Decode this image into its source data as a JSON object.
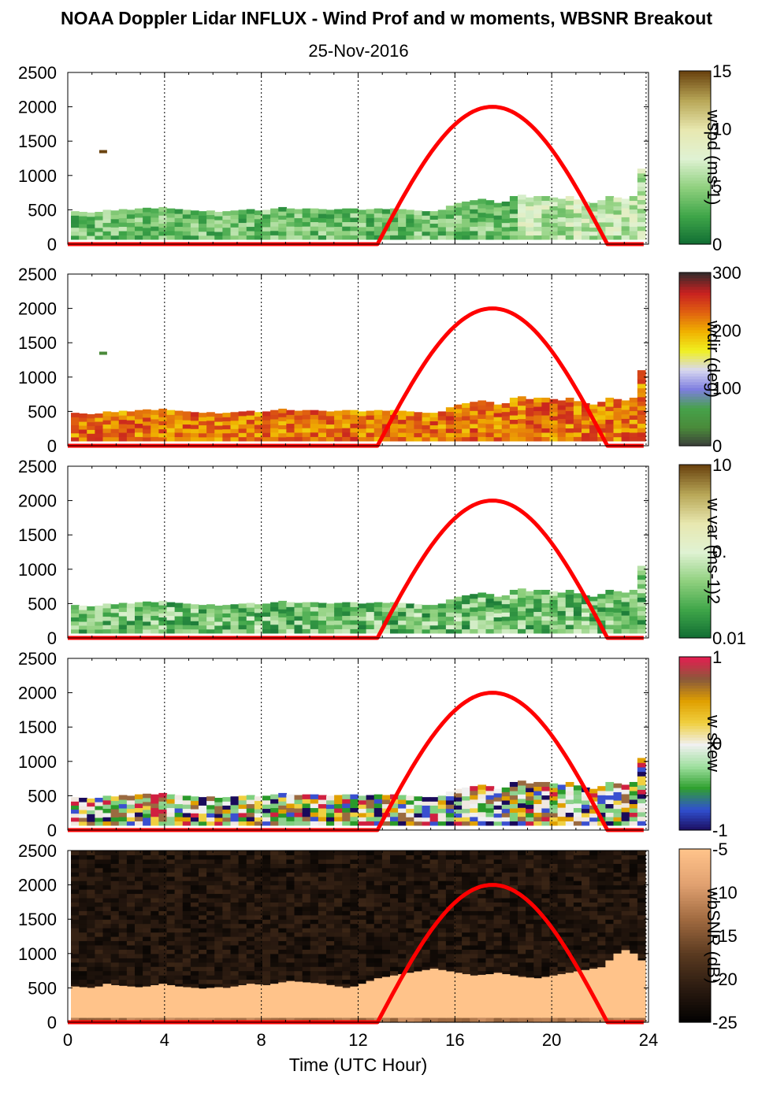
{
  "figure": {
    "title": "NOAA Doppler Lidar INFLUX - Wind Prof and w moments, WBSNR Breakout",
    "date": "25-Nov-2016"
  },
  "chart_data": [
    {
      "type": "heatmap",
      "panel": "wind speed",
      "ylim": [
        0,
        2500
      ],
      "xlim": [
        0,
        24
      ],
      "yticks": [
        "0",
        "500",
        "1000",
        "1500",
        "2000",
        "2500"
      ],
      "colorbar": {
        "label": "wspd (ms-1)",
        "ticks": [
          "15",
          "10",
          "5",
          "0"
        ],
        "range": [
          0,
          15
        ]
      },
      "data_top_m": [
        480,
        470,
        460,
        470,
        500,
        490,
        510,
        500,
        520,
        530,
        520,
        540,
        520,
        510,
        500,
        490,
        480,
        490,
        470,
        480,
        490,
        500,
        510,
        490,
        500,
        520,
        540,
        520,
        510,
        520,
        520,
        510,
        500,
        510,
        520,
        520,
        500,
        510,
        520,
        510,
        520,
        510,
        500,
        490,
        480,
        480,
        500,
        560,
        600,
        620,
        640,
        660,
        640,
        600,
        620,
        700,
        720,
        680,
        700,
        700,
        680,
        660,
        700,
        650,
        620,
        600,
        640,
        700,
        680,
        660,
        700,
        1100
      ],
      "sun_elevation_curve": {
        "rise_hour": 12.8,
        "set_hour": 22.3,
        "peak_hour": 17.5,
        "peak_value": 2000
      }
    },
    {
      "type": "heatmap",
      "panel": "wind direction",
      "ylim": [
        0,
        2500
      ],
      "xlim": [
        0,
        24
      ],
      "yticks": [
        "0",
        "500",
        "1000",
        "1500",
        "2000",
        "2500"
      ],
      "colorbar": {
        "label": "wdir (deg)",
        "ticks": [
          "300",
          "200",
          "100",
          "0"
        ],
        "range": [
          0,
          360
        ]
      },
      "data_top_m": [
        480,
        470,
        460,
        470,
        500,
        490,
        510,
        500,
        520,
        530,
        520,
        540,
        520,
        510,
        500,
        490,
        480,
        490,
        470,
        480,
        490,
        500,
        510,
        490,
        500,
        520,
        540,
        520,
        510,
        520,
        520,
        510,
        500,
        510,
        520,
        520,
        500,
        510,
        520,
        510,
        520,
        510,
        500,
        490,
        480,
        480,
        500,
        560,
        600,
        620,
        640,
        660,
        640,
        600,
        620,
        700,
        720,
        680,
        700,
        700,
        680,
        660,
        700,
        650,
        620,
        600,
        640,
        700,
        680,
        660,
        700,
        1100
      ],
      "sun_elevation_curve": {
        "rise_hour": 12.8,
        "set_hour": 22.3,
        "peak_hour": 17.5,
        "peak_value": 2000
      }
    },
    {
      "type": "heatmap",
      "panel": "w variance",
      "ylim": [
        0,
        2500
      ],
      "xlim": [
        0,
        24
      ],
      "yticks": [
        "0",
        "500",
        "1000",
        "1500",
        "2000",
        "2500"
      ],
      "colorbar": {
        "label": "w var (ms-1)2",
        "ticks": [
          "10",
          "0.",
          "0.01"
        ],
        "scale": "log",
        "range": [
          0.01,
          10
        ]
      },
      "data_top_m": [
        480,
        470,
        460,
        470,
        500,
        490,
        510,
        500,
        520,
        530,
        520,
        540,
        520,
        510,
        500,
        490,
        480,
        490,
        470,
        480,
        490,
        500,
        510,
        490,
        500,
        520,
        540,
        520,
        510,
        520,
        520,
        510,
        500,
        510,
        520,
        520,
        500,
        510,
        520,
        510,
        520,
        510,
        500,
        490,
        480,
        480,
        500,
        560,
        600,
        620,
        640,
        660,
        640,
        600,
        620,
        700,
        720,
        680,
        700,
        700,
        680,
        660,
        700,
        650,
        620,
        600,
        640,
        700,
        680,
        660,
        700,
        1050
      ],
      "sun_elevation_curve": {
        "rise_hour": 12.8,
        "set_hour": 22.3,
        "peak_hour": 17.5,
        "peak_value": 2000
      }
    },
    {
      "type": "heatmap",
      "panel": "w skewness",
      "ylim": [
        0,
        2500
      ],
      "xlim": [
        0,
        24
      ],
      "yticks": [
        "0",
        "500",
        "1000",
        "1500",
        "2000",
        "2500"
      ],
      "colorbar": {
        "label": "w skew",
        "ticks": [
          "1",
          "0",
          "-1"
        ],
        "range": [
          -1,
          1
        ]
      },
      "data_top_m": [
        480,
        470,
        460,
        470,
        500,
        490,
        510,
        500,
        520,
        530,
        520,
        540,
        520,
        510,
        500,
        490,
        480,
        490,
        470,
        480,
        490,
        500,
        510,
        490,
        500,
        520,
        540,
        520,
        510,
        520,
        520,
        510,
        500,
        510,
        520,
        520,
        500,
        510,
        520,
        510,
        520,
        510,
        500,
        490,
        480,
        480,
        500,
        560,
        600,
        620,
        640,
        660,
        640,
        600,
        620,
        700,
        720,
        680,
        700,
        700,
        680,
        660,
        700,
        650,
        620,
        600,
        640,
        700,
        680,
        660,
        700,
        1050
      ],
      "sun_elevation_curve": {
        "rise_hour": 12.8,
        "set_hour": 22.3,
        "peak_hour": 17.5,
        "peak_value": 2000
      }
    },
    {
      "type": "heatmap",
      "panel": "wideband SNR",
      "ylim": [
        0,
        2500
      ],
      "xlim": [
        0,
        24
      ],
      "xlabel": "Time (UTC Hour)",
      "xticks": [
        "0",
        "4",
        "8",
        "12",
        "16",
        "20",
        "24"
      ],
      "yticks": [
        "0",
        "500",
        "1000",
        "1500",
        "2000",
        "2500"
      ],
      "colorbar": {
        "label": "wbSNR (dB)",
        "ticks": [
          "-5",
          "-10",
          "-15",
          "-20",
          "-25"
        ],
        "range": [
          -25,
          -5
        ]
      },
      "boundary_layer_top_m": [
        520,
        510,
        500,
        520,
        560,
        540,
        530,
        520,
        510,
        520,
        540,
        560,
        540,
        520,
        510,
        500,
        490,
        500,
        510,
        500,
        520,
        540,
        560,
        550,
        540,
        560,
        580,
        600,
        590,
        580,
        570,
        560,
        540,
        520,
        500,
        520,
        560,
        600,
        640,
        660,
        680,
        700,
        720,
        740,
        760,
        780,
        760,
        740,
        720,
        700,
        680,
        690,
        700,
        720,
        700,
        680,
        660,
        650,
        640,
        660,
        680,
        700,
        720,
        740,
        760,
        780,
        800,
        900,
        1000,
        1050,
        1000,
        900
      ],
      "sun_elevation_curve": {
        "rise_hour": 12.8,
        "set_hour": 22.3,
        "peak_hour": 17.5,
        "peak_value": 2000
      }
    }
  ]
}
